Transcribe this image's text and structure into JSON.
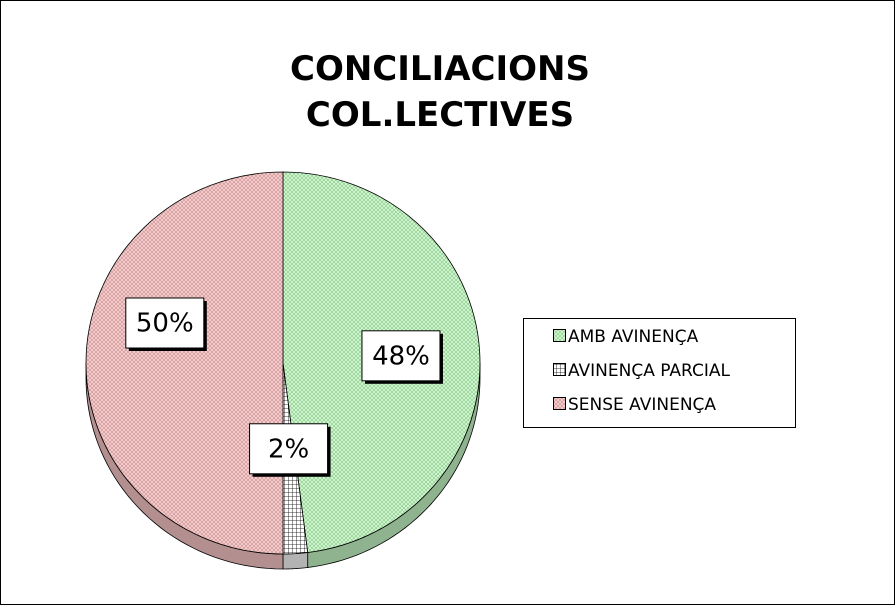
{
  "chart_data": {
    "type": "pie",
    "title": "CONCILIACIONS COL.LECTIVES",
    "categories": [
      "AMB AVINENÇA",
      "AVINENÇA PARCIAL",
      "SENSE AVINENÇA"
    ],
    "values": [
      48,
      2,
      50
    ],
    "value_labels": [
      "48%",
      "2%",
      "50%"
    ],
    "colors": [
      "#ccffcc",
      "#ffffff",
      "#ffcccc"
    ],
    "legend": "right"
  }
}
